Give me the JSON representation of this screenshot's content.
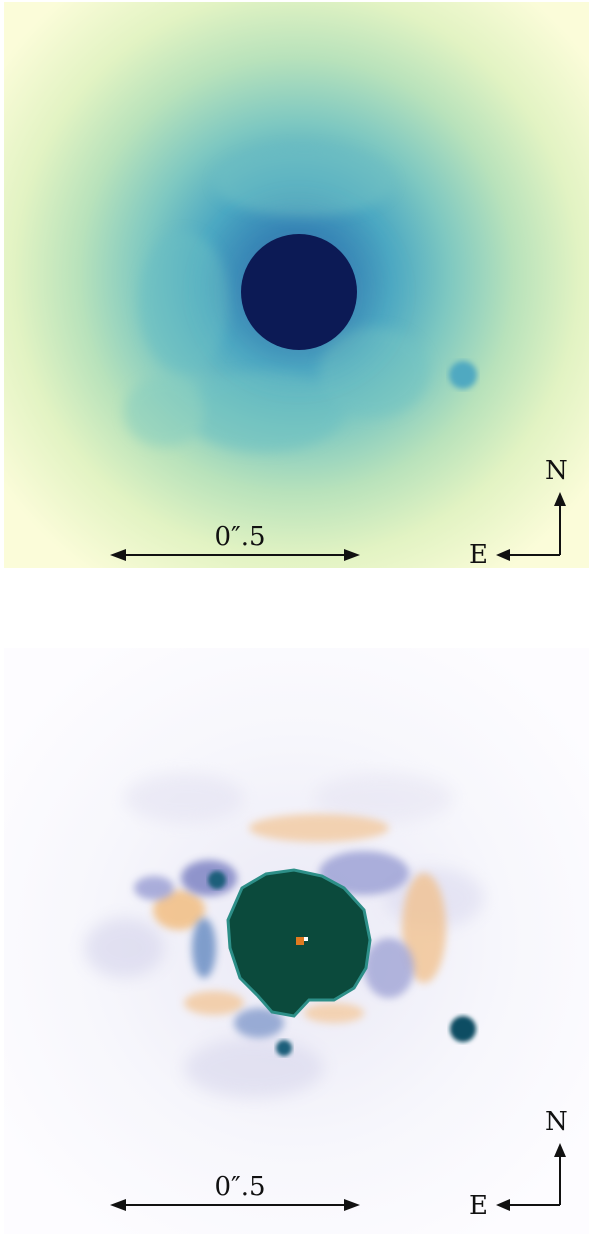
{
  "panels": [
    {
      "id": "top",
      "scale_bar_label": "0″.5",
      "compass": {
        "north": "N",
        "east": "E"
      },
      "colors": {
        "background": "#fbfcd9",
        "halo": "#5cb8c0",
        "core": "#0c1a55"
      }
    },
    {
      "id": "bottom",
      "scale_bar_label": "0″.5",
      "compass": {
        "north": "N",
        "east": "E"
      },
      "colors": {
        "background": "#fdfcff",
        "positive": "#f0b46a",
        "negative": "#7a7fc0",
        "core": "#0b4a3c"
      }
    }
  ]
}
